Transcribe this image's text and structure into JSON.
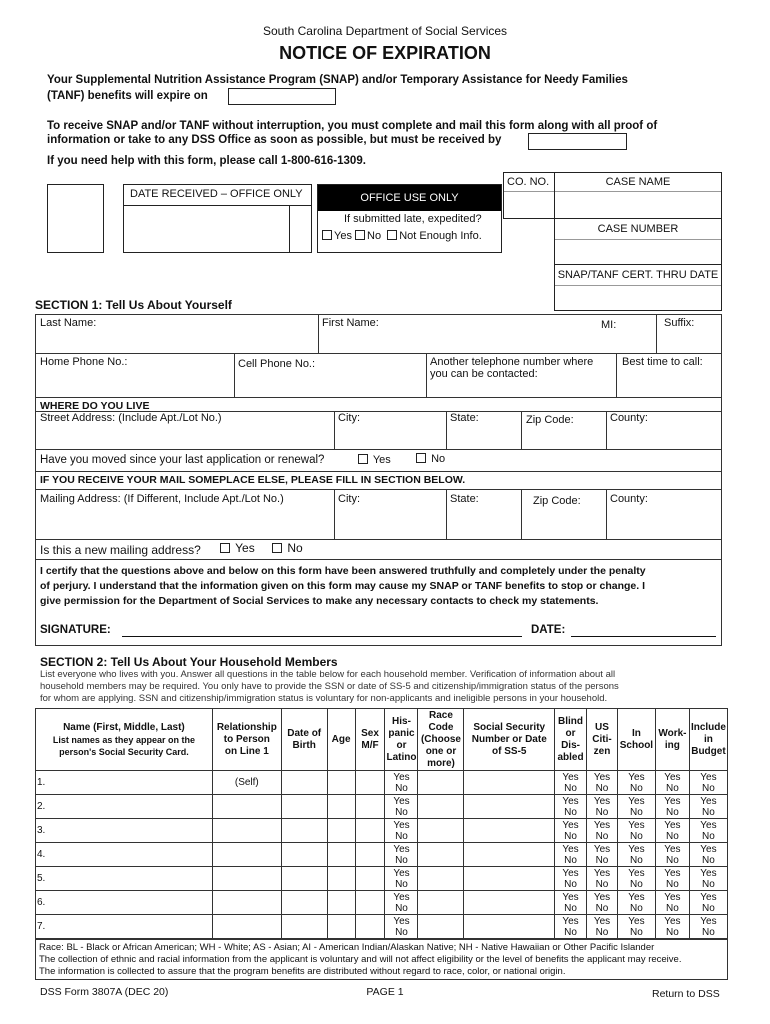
{
  "header": {
    "agency": "South Carolina Department of Social Services",
    "title": "NOTICE OF EXPIRATION",
    "intro_line1": "Your Supplemental Nutrition Assistance Program (SNAP) and/or Temporary Assistance for Needy Families",
    "intro_line2": "(TANF) benefits will expire on",
    "receive_line1": "To receive SNAP and/or TANF without interruption, you must complete and mail this form along with all proof of",
    "receive_line2": "information or take to any DSS Office as soon as possible, but must be received by",
    "help_line": "If you need help with this form, please call 1-800-616-1309."
  },
  "office": {
    "date_received": "DATE RECEIVED – OFFICE ONLY",
    "office_use": "OFFICE USE ONLY",
    "late_question": "If submitted late, expedited?",
    "yes": "Yes",
    "no": "No",
    "not_enough": "Not Enough Info.",
    "co_no": "CO. NO.",
    "case_name": "CASE NAME",
    "case_number": "CASE NUMBER",
    "cert_thru": "SNAP/TANF CERT. THRU DATE"
  },
  "section1": {
    "title": "SECTION 1: Tell Us About Yourself",
    "last_name": "Last Name:",
    "first_name": "First Name:",
    "mi": "MI:",
    "suffix": "Suffix:",
    "home_phone": "Home Phone No.:",
    "cell_phone": "Cell Phone No.:",
    "other_phone1": "Another telephone number where",
    "other_phone2": "you can be contacted:",
    "best_time": "Best time to call:",
    "where_live": "WHERE DO YOU LIVE",
    "street": "Street Address: (Include Apt./Lot No.)",
    "city": "City:",
    "state": "State:",
    "zip": "Zip Code:",
    "county": "County:",
    "moved_q": "Have you moved since your last application or renewal?",
    "yes": "Yes",
    "no": "No",
    "mail_elsewhere": "IF YOU RECEIVE YOUR MAIL SOMEPLACE ELSE, PLEASE FILL IN SECTION BELOW.",
    "mailing": "Mailing Address: (If Different, Include Apt./Lot No.)",
    "new_mail_q": "Is this a new mailing address?",
    "certify1": "I certify that the questions above and below on this form have been answered truthfully and completely under the penalty",
    "certify2": "of perjury. I understand that the information given on this form may cause my SNAP or TANF benefits to stop or change. I",
    "certify3": "give permission for the Department of Social Services to make any necessary contacts to check my statements.",
    "signature": "SIGNATURE:",
    "date": "DATE:"
  },
  "section2": {
    "title": "SECTION 2: Tell Us About Your Household Members",
    "intro1": "List everyone who lives with you. Answer all questions in the table below for each household member. Verification of information about all",
    "intro2": "household members may be required. You only have to provide the SSN or date of SS-5 and citizenship/immigration status of the persons",
    "intro3": "for whom are applying. SSN and citizenship/immigration status is voluntary for non-applicants and ineligible persons in your household.",
    "columns": [
      "Name (First, Middle, Last)|List names as they appear on the|person's Social Security Card.",
      "Relationship|to Person|on Line 1",
      "Date of|Birth",
      "Age",
      "Sex|M/F",
      "His-|panic|or|Latino",
      "Race|Code|(Choose|one or|more)",
      "Social Security|Number or Date|of SS-5",
      "Blind|or|Dis-|abled",
      "US|Citi-|zen",
      "In|School",
      "Work-|ing",
      "Include|in|Budget"
    ],
    "rows": [
      {
        "num": "1.",
        "relationship": "(Self)"
      },
      {
        "num": "2.",
        "relationship": ""
      },
      {
        "num": "3.",
        "relationship": ""
      },
      {
        "num": "4.",
        "relationship": ""
      },
      {
        "num": "5.",
        "relationship": ""
      },
      {
        "num": "6.",
        "relationship": ""
      },
      {
        "num": "7.",
        "relationship": ""
      }
    ],
    "yes": "Yes",
    "no": "No",
    "race_note": "Race: BL - Black or African American; WH - White; AS - Asian; AI - American Indian/Alaskan Native; NH - Native Hawaiian or Other Pacific Islander",
    "collection_note": "The collection of ethnic and racial information from the applicant is voluntary and will not affect eligibility or the level of benefits the applicant may receive.",
    "info_note": "The information is collected to assure that the program benefits are distributed without regard to race, color, or national origin."
  },
  "footer": {
    "form": "DSS Form 3807A (DEC 20)",
    "page": "PAGE 1",
    "return": "Return to DSS"
  }
}
